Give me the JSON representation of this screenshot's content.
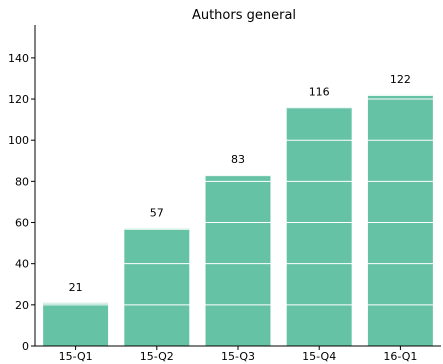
{
  "chart_data": {
    "type": "bar",
    "title": "Authors general",
    "xlabel": "",
    "ylabel": "",
    "categories": [
      "15-Q1",
      "15-Q2",
      "15-Q3",
      "15-Q4",
      "16-Q1"
    ],
    "values": [
      21,
      57,
      83,
      116,
      122
    ],
    "data_labels": [
      "21",
      "57",
      "83",
      "116",
      "122"
    ],
    "yticks": [
      0,
      20,
      40,
      60,
      80,
      100,
      120,
      140
    ],
    "ytick_labels": [
      "0",
      "20",
      "40",
      "60",
      "80",
      "100",
      "120",
      "140"
    ],
    "ylim": [
      0,
      155
    ],
    "grid": true,
    "legend": "none",
    "colors": {
      "bar": "#66c2a5",
      "grid": "#ffffff",
      "axis": "#000000"
    }
  }
}
